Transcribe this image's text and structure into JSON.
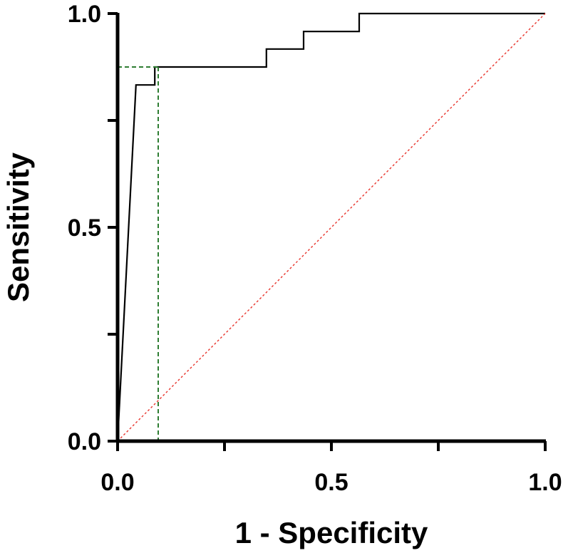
{
  "chart_data": {
    "type": "line",
    "xlabel": "1 - Specificity",
    "ylabel": "Sensitivity",
    "xlim": [
      0,
      1
    ],
    "ylim": [
      0,
      1
    ],
    "x_ticks": [
      0,
      0.25,
      0.5,
      0.75,
      1
    ],
    "y_ticks": [
      0,
      0.25,
      0.5,
      0.75,
      1
    ],
    "x_tick_labels": [
      "0.0",
      "",
      "0.5",
      "",
      "1.0"
    ],
    "y_tick_labels": [
      "0.0",
      "",
      "0.5",
      "",
      "1.0"
    ],
    "grid": false,
    "legend": "none",
    "series": [
      {
        "style": "solid",
        "color": "#000000",
        "x": [
          0,
          0.043,
          0.043,
          0.087,
          0.087,
          0.348,
          0.348,
          0.435,
          0.435,
          0.565,
          0.565,
          1.0
        ],
        "y": [
          0,
          0.833,
          0.833,
          0.833,
          0.875,
          0.875,
          0.917,
          0.917,
          0.958,
          0.958,
          1.0,
          1.0
        ]
      },
      {
        "style": "dotted",
        "color": "#e8332b",
        "x": [
          0,
          1
        ],
        "y": [
          0,
          1
        ]
      }
    ],
    "cutoff_guide": {
      "style": "dashed",
      "color": "#2e7d32",
      "x": 0.095,
      "y": 0.875
    }
  }
}
